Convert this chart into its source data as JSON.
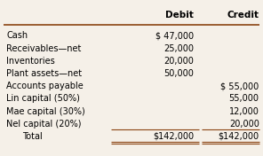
{
  "headers": [
    "",
    "Debit",
    "Credit"
  ],
  "rows": [
    [
      "Cash",
      "$ 47,000",
      ""
    ],
    [
      "Receivables—net",
      "25,000",
      ""
    ],
    [
      "Inventories",
      "20,000",
      ""
    ],
    [
      "Plant assets—net",
      "50,000",
      ""
    ],
    [
      "Accounts payable",
      "",
      "$ 55,000"
    ],
    [
      "Lin capital (50%)",
      "",
      "55,000"
    ],
    [
      "Mae capital (30%)",
      "",
      "12,000"
    ],
    [
      "Nel capital (20%)",
      "",
      "20,000"
    ],
    [
      "Total",
      "$142,000",
      "$142,000"
    ]
  ],
  "bg_color": "#f5f0e8",
  "header_line_color": "#8B4513",
  "text_color": "#000000",
  "header_fontsize": 7.5,
  "row_fontsize": 7.0
}
